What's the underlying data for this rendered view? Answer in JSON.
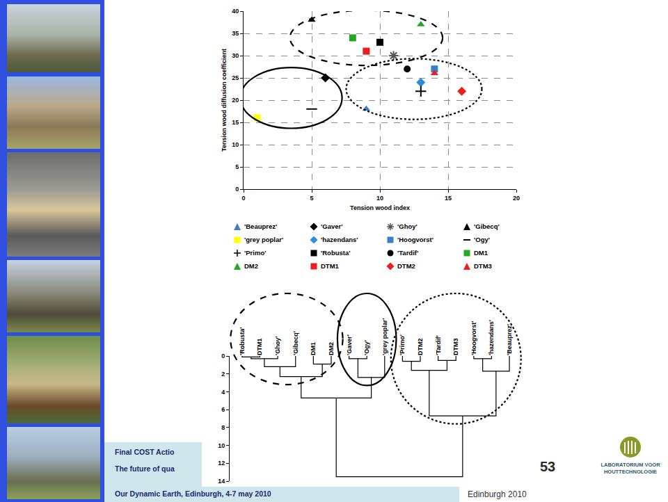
{
  "chart_data": [
    {
      "type": "scatter",
      "x_label": "Tension wood index",
      "y_label": "Tension wood diffusion coefficient",
      "xlim": [
        0,
        20
      ],
      "xticks": [
        0,
        5,
        10,
        15,
        20
      ],
      "ylim": [
        0,
        40
      ],
      "yticks": [
        0,
        5,
        10,
        15,
        20,
        25,
        30,
        35,
        40
      ],
      "grid": true,
      "legend": "bottom",
      "series": [
        {
          "name": "'Beauprez'",
          "color": "#3a7fc8",
          "marker": "triangle",
          "x": [
            9
          ],
          "values": [
            18
          ]
        },
        {
          "name": "'Gaver'",
          "color": "#000000",
          "marker": "diamond",
          "x": [
            6
          ],
          "values": [
            25
          ]
        },
        {
          "name": "'Ghoy'",
          "color": "#555555",
          "marker": "asterisk",
          "x": [
            11
          ],
          "values": [
            30
          ]
        },
        {
          "name": "'Gibecq'",
          "color": "#000000",
          "marker": "triangle",
          "x": [
            5
          ],
          "values": [
            38
          ]
        },
        {
          "name": "'grey poplar'",
          "color": "#ffff00",
          "marker": "square",
          "x": [
            1
          ],
          "values": [
            16
          ]
        },
        {
          "name": "'hazendans'",
          "color": "#2b8de0",
          "marker": "diamond",
          "x": [
            13
          ],
          "values": [
            24
          ]
        },
        {
          "name": "'Hoogvorst'",
          "color": "#3a7fc8",
          "marker": "square",
          "x": [
            14
          ],
          "values": [
            27
          ]
        },
        {
          "name": "'Ogy'",
          "color": "#000000",
          "marker": "dash",
          "x": [
            5
          ],
          "values": [
            18
          ]
        },
        {
          "name": "'Primo'",
          "color": "#000000",
          "marker": "plus",
          "x": [
            13
          ],
          "values": [
            22
          ]
        },
        {
          "name": "'Robusta'",
          "color": "#000000",
          "marker": "square",
          "x": [
            10
          ],
          "values": [
            33
          ]
        },
        {
          "name": "'Tardif'",
          "color": "#000000",
          "marker": "circle",
          "x": [
            12
          ],
          "values": [
            27
          ]
        },
        {
          "name": "DM1",
          "color": "#22a822",
          "marker": "square",
          "x": [
            8
          ],
          "values": [
            34
          ]
        },
        {
          "name": "DM2",
          "color": "#22a822",
          "marker": "triangle",
          "x": [
            13
          ],
          "values": [
            37
          ]
        },
        {
          "name": "DTM1",
          "color": "#ee1c1c",
          "marker": "square",
          "x": [
            9
          ],
          "values": [
            31
          ]
        },
        {
          "name": "DTM2",
          "color": "#ee1c1c",
          "marker": "diamond",
          "x": [
            16
          ],
          "values": [
            22
          ]
        },
        {
          "name": "DTM3",
          "color": "#ee1c1c",
          "marker": "triangle",
          "x": [
            14
          ],
          "values": [
            26
          ]
        }
      ],
      "clusters": [
        {
          "members": [
            "'Gibecq'",
            "DM1",
            "DTM1",
            "'Robusta'",
            "'Ghoy'",
            "DM2"
          ],
          "line_style": "dashed"
        },
        {
          "members": [
            "'grey poplar'",
            "'Ogy'",
            "'Gaver'"
          ],
          "line_style": "solid"
        },
        {
          "members": [
            "'Beauprez'",
            "'Tardif'",
            "'hazendans'",
            "'Primo'",
            "'Hoogvorst'",
            "DTM3",
            "DTM2"
          ],
          "line_style": "dotted"
        }
      ]
    },
    {
      "type": "dendrogram",
      "leaves": [
        "'Robusta'",
        "DTM1",
        "'Ghoy'",
        "'Gibecq'",
        "DM1",
        "DM2",
        "'Gaver'",
        "'Ogy'",
        "'grey poplar'",
        "'Primo'",
        "DTM2",
        "'Tardif'",
        "DTM3",
        "'Hoogvorst'",
        "'hazendans'",
        "'Beauprez'"
      ],
      "merges": [
        [
          0,
          1,
          0.1
        ],
        [
          16,
          2,
          0.3
        ],
        [
          17,
          3,
          1.2
        ],
        [
          4,
          5,
          0.9
        ],
        [
          18,
          19,
          2.3
        ],
        [
          6,
          7,
          0.3
        ],
        [
          21,
          8,
          2.4
        ],
        [
          20,
          22,
          4.7
        ],
        [
          9,
          10,
          0.6
        ],
        [
          11,
          12,
          0.5
        ],
        [
          24,
          25,
          1.6
        ],
        [
          13,
          14,
          0.3
        ],
        [
          27,
          15,
          1.7
        ],
        [
          26,
          28,
          6.7
        ],
        [
          23,
          29,
          13.5
        ]
      ],
      "ylim": [
        0,
        14
      ],
      "yticks": [
        0,
        2,
        4,
        6,
        8,
        10,
        12,
        14
      ],
      "clusters": [
        {
          "members": [
            "'Robusta'",
            "DTM1",
            "'Ghoy'",
            "'Gibecq'",
            "DM1",
            "DM2"
          ],
          "line_style": "dashed"
        },
        {
          "members": [
            "'Gaver'",
            "'Ogy'",
            "'grey poplar'"
          ],
          "line_style": "solid"
        },
        {
          "members": [
            "'Primo'",
            "DTM2",
            "'Tardif'",
            "DTM3",
            "'Hoogvorst'",
            "'hazendans'",
            "'Beauprez'"
          ],
          "line_style": "dotted"
        }
      ]
    }
  ],
  "slide": {
    "footer_lines": [
      "Final COST Actio",
      "The future of qua",
      "Our Dynamic Earth, Edinburgh, 4-7 may 2010"
    ],
    "page_number": "53",
    "place": "Edinburgh 2010",
    "logo": [
      "LABORATORIUM VOOR",
      "HOUTTECHNOLOGIE"
    ]
  }
}
